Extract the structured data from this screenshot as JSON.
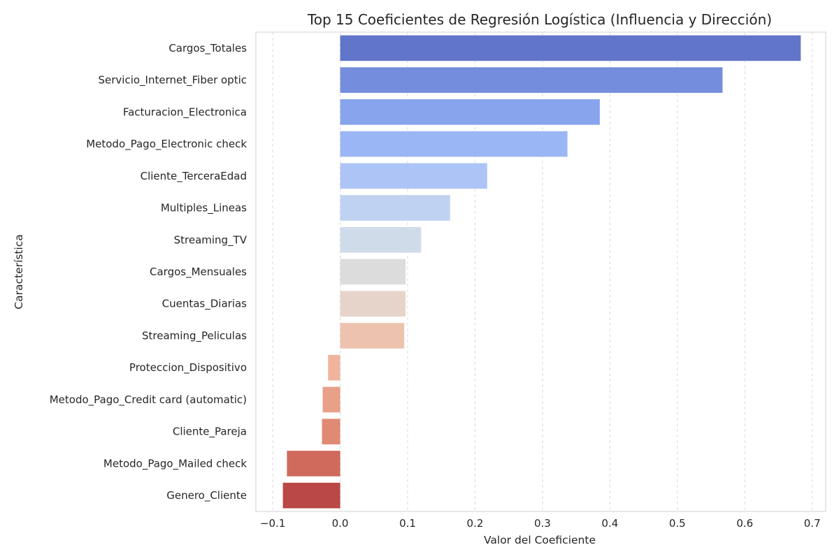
{
  "chart_data": {
    "type": "bar",
    "orientation": "horizontal",
    "title": "Top 15 Coeficientes de Regresión Logística (Influencia y Dirección)",
    "xlabel": "Valor del Coeficiente",
    "ylabel": "Característica",
    "xlim": [
      -0.125,
      0.72
    ],
    "xticks": [
      -0.1,
      0.0,
      0.1,
      0.2,
      0.3,
      0.4,
      0.5,
      0.6,
      0.7
    ],
    "xtick_labels": [
      "−0.1",
      "0.0",
      "0.1",
      "0.2",
      "0.3",
      "0.4",
      "0.5",
      "0.6",
      "0.7"
    ],
    "grid": "vertical-dashed",
    "categories": [
      "Cargos_Totales",
      "Servicio_Internet_Fiber optic",
      "Facturacion_Electronica",
      "Metodo_Pago_Electronic check",
      "Cliente_TerceraEdad",
      "Multiples_Lineas",
      "Streaming_TV",
      "Cargos_Mensuales",
      "Cuentas_Diarias",
      "Streaming_Peliculas",
      "Proteccion_Dispositivo",
      "Metodo_Pago_Credit card (automatic)",
      "Cliente_Pareja",
      "Metodo_Pago_Mailed check",
      "Genero_Cliente"
    ],
    "values": [
      0.683,
      0.567,
      0.385,
      0.337,
      0.218,
      0.163,
      0.12,
      0.097,
      0.097,
      0.095,
      -0.018,
      -0.026,
      -0.027,
      -0.079,
      -0.085
    ],
    "colors": [
      "#6176cb",
      "#748ddd",
      "#87a4ec",
      "#9bb6f4",
      "#adc5f6",
      "#c0d2f2",
      "#d0dbea",
      "#dcdcdc",
      "#e6d4ca",
      "#edc3b0",
      "#f0b49c",
      "#e8a088",
      "#e08a74",
      "#d06a5c",
      "#ba4846"
    ]
  }
}
